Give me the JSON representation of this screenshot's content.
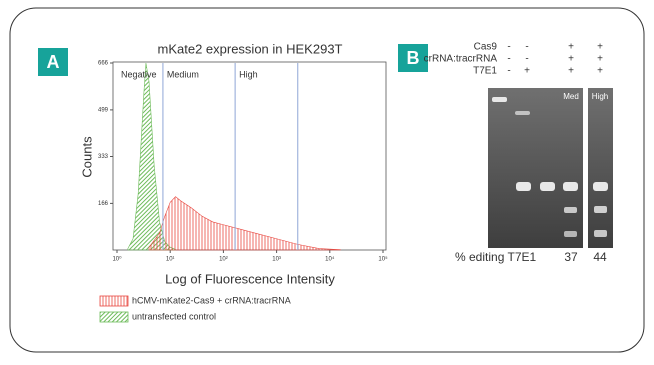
{
  "panel_labels": [
    "A",
    "B"
  ],
  "chart_data": {
    "type": "area",
    "title": "mKate2 expression in HEK293T",
    "x_label": "Log of Fluorescence Intensity",
    "y_label": "Counts",
    "xlog": true,
    "xlim": [
      1,
      100000
    ],
    "xticks": [
      {
        "value": 1,
        "label": "10⁰"
      },
      {
        "value": 10,
        "label": "10¹"
      },
      {
        "value": 100,
        "label": "10²"
      },
      {
        "value": 1000,
        "label": "10³"
      },
      {
        "value": 10000,
        "label": "10⁴"
      },
      {
        "value": 100000,
        "label": "10⁵"
      }
    ],
    "ylim": [
      0,
      666
    ],
    "yticks": [
      166,
      333,
      499,
      666
    ],
    "gates": [
      {
        "x": 1,
        "label": "Negative"
      },
      {
        "x": 7.3,
        "label": "Medium"
      },
      {
        "x": 166,
        "label": "High"
      }
    ],
    "gate_lines": [
      7.3,
      166,
      2500
    ],
    "gate_color": "#8fa6d6",
    "series": [
      {
        "name": "hCMV-mKate2-Cas9 + crRNA:tracrRNA",
        "color": "#e8473f",
        "x": [
          4,
          6.3,
          7.9,
          10,
          12.6,
          15.8,
          25,
          40,
          63,
          100,
          200,
          400,
          1000,
          2500,
          6300,
          15800
        ],
        "values": [
          10,
          60,
          120,
          170,
          190,
          175,
          150,
          120,
          100,
          90,
          75,
          60,
          40,
          20,
          5,
          1
        ]
      },
      {
        "name": "untransfected control",
        "color": "#6dbb5a",
        "x": [
          1.6,
          2,
          2.5,
          3.2,
          3.5,
          4,
          5,
          6.3,
          7.9,
          10,
          12.6
        ],
        "values": [
          5,
          40,
          200,
          560,
          666,
          600,
          300,
          100,
          30,
          10,
          2
        ]
      }
    ]
  },
  "gel": {
    "rows": [
      {
        "label": "Cas9",
        "marks": [
          "-",
          "-",
          "+",
          "+"
        ]
      },
      {
        "label": "crRNA:tracrRNA",
        "marks": [
          "-",
          "-",
          "+",
          "+"
        ]
      },
      {
        "label": "T7E1",
        "marks": [
          "-",
          "+",
          "+",
          "+"
        ]
      }
    ],
    "lane_labels": [
      "Med",
      "High"
    ],
    "editing_label": "% editing T7E1",
    "editing": [
      37,
      44
    ]
  }
}
